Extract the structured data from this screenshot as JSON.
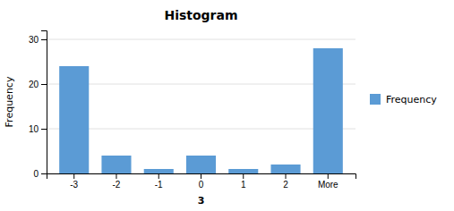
{
  "chart_data": {
    "type": "bar",
    "title": "Histogram",
    "categories": [
      "-3",
      "-2",
      "-1",
      "0",
      "1",
      "2",
      "More"
    ],
    "series": [
      {
        "name": "Frequency",
        "color": "#5B9BD5",
        "values": [
          24,
          4,
          1,
          4,
          1,
          2,
          28
        ]
      }
    ],
    "xlabel": "3",
    "ylabel": "Frequency",
    "ylim": [
      0,
      32
    ],
    "yticks": [
      0,
      10,
      20,
      30
    ],
    "grid": true,
    "legend": "right"
  }
}
